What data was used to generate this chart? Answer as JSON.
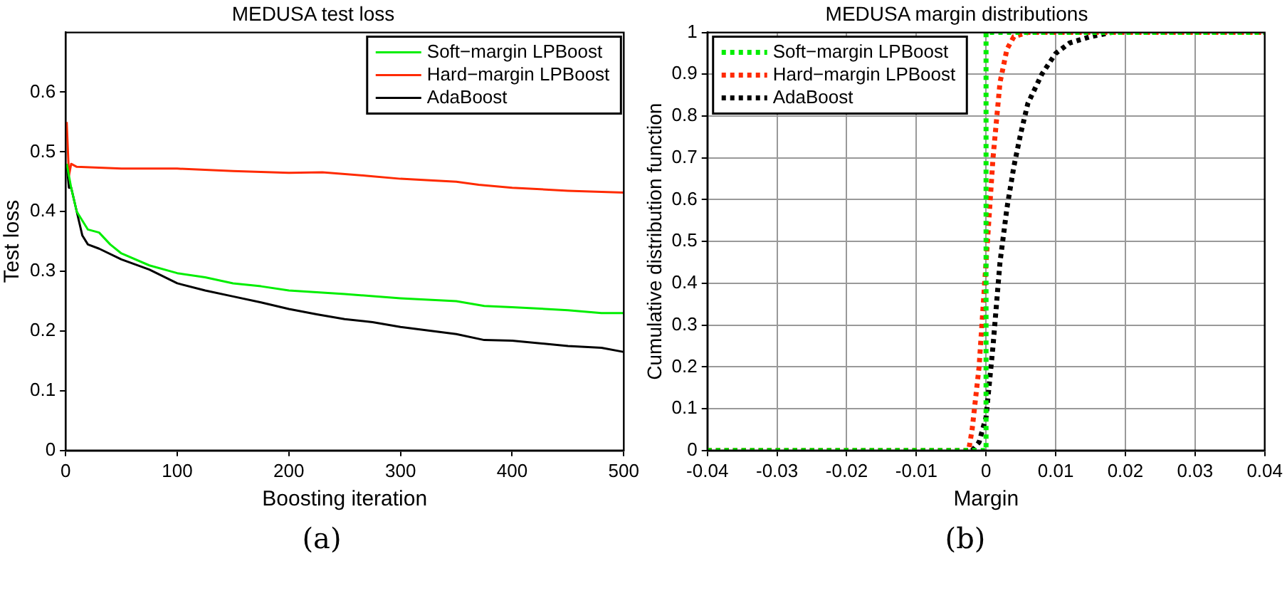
{
  "chart_data": [
    {
      "type": "line",
      "title": "MEDUSA test loss",
      "xlabel": "Boosting iteration",
      "ylabel": "Test loss",
      "xlim": [
        0,
        500
      ],
      "xticks": [
        0,
        100,
        200,
        300,
        400,
        500
      ],
      "ylim": [
        0,
        0.7
      ],
      "yticks": [
        0,
        0.1,
        0.2,
        0.3,
        0.4,
        0.5,
        0.6
      ],
      "grid": false,
      "legend": "top right",
      "marker": "none",
      "line_style": "solid",
      "annotations": [
        "(a)"
      ],
      "series": [
        {
          "name": "Soft−margin LPBoost",
          "color": "#00ee00",
          "x": [
            1,
            5,
            10,
            20,
            30,
            40,
            50,
            75,
            100,
            125,
            150,
            175,
            200,
            250,
            300,
            350,
            375,
            400,
            450,
            480,
            500
          ],
          "values": [
            0.48,
            0.44,
            0.4,
            0.37,
            0.365,
            0.345,
            0.33,
            0.31,
            0.297,
            0.29,
            0.28,
            0.275,
            0.268,
            0.262,
            0.255,
            0.25,
            0.242,
            0.24,
            0.235,
            0.23,
            0.23
          ]
        },
        {
          "name": "Hard−margin LPBoost",
          "color": "#ff2a00",
          "x": [
            1,
            3,
            5,
            10,
            50,
            100,
            150,
            200,
            230,
            270,
            300,
            350,
            370,
            400,
            450,
            500
          ],
          "values": [
            0.55,
            0.46,
            0.48,
            0.475,
            0.472,
            0.472,
            0.468,
            0.465,
            0.466,
            0.46,
            0.455,
            0.45,
            0.445,
            0.44,
            0.435,
            0.432
          ]
        },
        {
          "name": "AdaBoost",
          "color": "#000000",
          "x": [
            1,
            3,
            5,
            10,
            15,
            20,
            30,
            50,
            75,
            100,
            125,
            150,
            175,
            200,
            225,
            250,
            275,
            300,
            350,
            375,
            400,
            450,
            480,
            500
          ],
          "values": [
            0.48,
            0.44,
            0.44,
            0.4,
            0.36,
            0.345,
            0.338,
            0.32,
            0.303,
            0.28,
            0.268,
            0.258,
            0.248,
            0.237,
            0.228,
            0.22,
            0.215,
            0.207,
            0.195,
            0.185,
            0.184,
            0.175,
            0.172,
            0.165
          ]
        }
      ]
    },
    {
      "type": "line",
      "title": "MEDUSA margin distributions",
      "xlabel": "Margin",
      "ylabel": "Cumulative distribution function",
      "xlim": [
        -0.04,
        0.04
      ],
      "xticks": [
        -0.04,
        -0.03,
        -0.02,
        -0.01,
        0,
        0.01,
        0.02,
        0.03,
        0.04
      ],
      "ylim": [
        0,
        1
      ],
      "yticks": [
        0,
        0.1,
        0.2,
        0.3,
        0.4,
        0.5,
        0.6,
        0.7,
        0.8,
        0.9,
        1
      ],
      "grid": true,
      "legend": "top left",
      "marker": "none",
      "line_style": "dotted",
      "annotations": [
        "(b)"
      ],
      "series": [
        {
          "name": "Soft−margin LPBoost",
          "color": "#00ee00",
          "x": [
            -0.04,
            0,
            0,
            0.04
          ],
          "values": [
            0,
            0,
            1,
            1
          ]
        },
        {
          "name": "Hard−margin LPBoost",
          "color": "#ff2a00",
          "x": [
            -0.04,
            -0.0025,
            -0.002,
            -0.001,
            0,
            0.001,
            0.002,
            0.003,
            0.004,
            0.006,
            0.04
          ],
          "values": [
            0,
            0,
            0.05,
            0.2,
            0.45,
            0.7,
            0.88,
            0.96,
            0.99,
            1,
            1
          ]
        },
        {
          "name": "AdaBoost",
          "color": "#000000",
          "x": [
            -0.04,
            -0.002,
            -0.001,
            0,
            0.001,
            0.002,
            0.003,
            0.004,
            0.005,
            0.006,
            0.008,
            0.01,
            0.012,
            0.015,
            0.018,
            0.04
          ],
          "values": [
            0,
            0,
            0.02,
            0.08,
            0.25,
            0.45,
            0.58,
            0.68,
            0.76,
            0.83,
            0.9,
            0.95,
            0.975,
            0.99,
            1,
            1
          ]
        }
      ]
    }
  ]
}
